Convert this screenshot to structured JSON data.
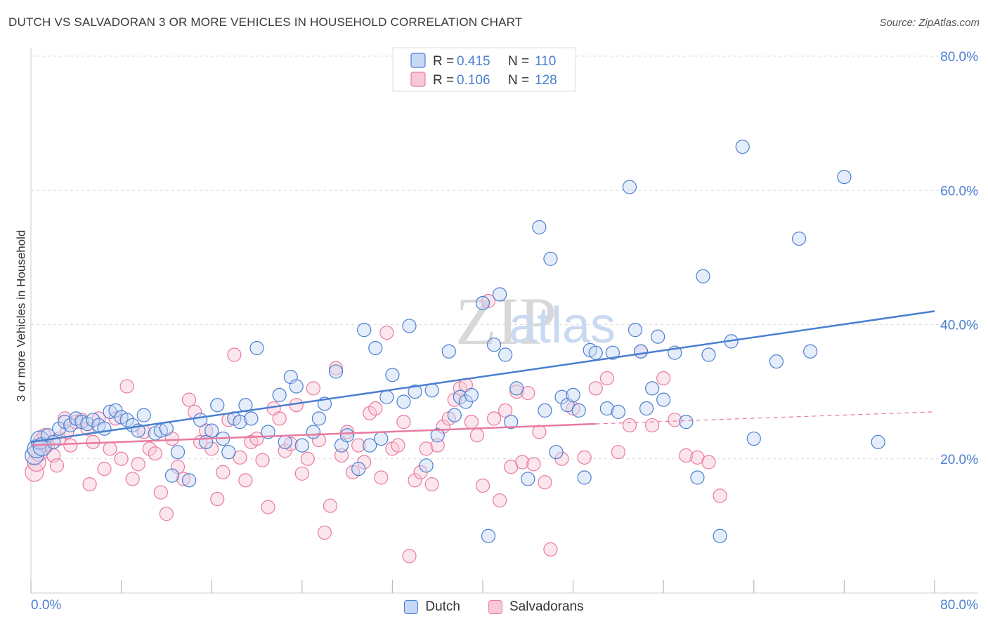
{
  "title": "DUTCH VS SALVADORAN 3 OR MORE VEHICLES IN HOUSEHOLD CORRELATION CHART",
  "source": "Source: ZipAtlas.com",
  "watermark": {
    "zip": "ZIP",
    "atlas": "atlas"
  },
  "legend_top": [
    {
      "r_label": "R = ",
      "r_value": "0.415",
      "n_label": "N = ",
      "n_value": "110"
    },
    {
      "r_label": "R = ",
      "r_value": "0.106",
      "n_label": "N = ",
      "n_value": "128"
    }
  ],
  "legend_bottom": [
    "Dutch",
    "Salvadorans"
  ],
  "chart_data": {
    "type": "scatter",
    "title": "DUTCH VS SALVADORAN 3 OR MORE VEHICLES IN HOUSEHOLD CORRELATION CHART",
    "xlabel": "",
    "ylabel": "3 or more Vehicles in Household",
    "xlim": [
      0,
      80
    ],
    "ylim": [
      0,
      80
    ],
    "x_tick_labels": [
      "0.0%",
      "80.0%"
    ],
    "y_ticks": [
      20,
      40,
      60,
      80
    ],
    "y_tick_labels": [
      "20.0%",
      "40.0%",
      "60.0%",
      "80.0%"
    ],
    "grid": true,
    "legend_position": "top-center",
    "colors": {
      "dutch": "#4a7fd0",
      "salvadorans": "#e87aa0",
      "dutch_fill": "#c5d8f5",
      "salvadorans_fill": "#f8c8d8"
    },
    "series": [
      {
        "name": "Dutch",
        "r": 0.415,
        "n": 110,
        "trend": {
          "x": [
            0,
            80
          ],
          "y": [
            22.5,
            42.0
          ]
        },
        "points": [
          [
            0.3,
            20.5
          ],
          [
            0.5,
            21.5
          ],
          [
            0.8,
            22.8
          ],
          [
            1,
            21.8
          ],
          [
            1.5,
            23.5
          ],
          [
            2,
            22.5
          ],
          [
            2.5,
            24.5
          ],
          [
            3,
            25.5
          ],
          [
            3.5,
            25
          ],
          [
            4,
            26
          ],
          [
            4.5,
            25.5
          ],
          [
            5,
            25.2
          ],
          [
            5.5,
            25.8
          ],
          [
            6,
            25
          ],
          [
            6.5,
            24.5
          ],
          [
            7,
            27
          ],
          [
            7.5,
            27.2
          ],
          [
            8,
            26.2
          ],
          [
            8.5,
            25.8
          ],
          [
            9,
            25
          ],
          [
            9.5,
            24.2
          ],
          [
            10,
            26.5
          ],
          [
            11,
            23.8
          ],
          [
            11.5,
            24.2
          ],
          [
            12,
            24.5
          ],
          [
            12.5,
            17.5
          ],
          [
            13,
            21
          ],
          [
            14,
            16.8
          ],
          [
            15,
            25.8
          ],
          [
            15.5,
            22.5
          ],
          [
            16,
            24.2
          ],
          [
            16.5,
            28
          ],
          [
            17,
            23
          ],
          [
            17.5,
            21
          ],
          [
            18,
            26
          ],
          [
            18.5,
            25.5
          ],
          [
            19,
            28
          ],
          [
            19.5,
            26
          ],
          [
            20,
            36.5
          ],
          [
            21,
            24
          ],
          [
            22,
            29.5
          ],
          [
            22.5,
            22.5
          ],
          [
            23,
            32.2
          ],
          [
            23.5,
            30.8
          ],
          [
            24,
            22
          ],
          [
            25,
            24
          ],
          [
            25.5,
            26
          ],
          [
            26,
            28.2
          ],
          [
            27,
            33
          ],
          [
            27.5,
            22
          ],
          [
            28,
            23.5
          ],
          [
            29,
            18.5
          ],
          [
            29.5,
            39.2
          ],
          [
            30,
            22
          ],
          [
            30.5,
            36.5
          ],
          [
            31,
            23
          ],
          [
            31.5,
            29.2
          ],
          [
            32,
            32.5
          ],
          [
            33,
            28.5
          ],
          [
            33.5,
            39.8
          ],
          [
            34,
            30
          ],
          [
            35,
            19
          ],
          [
            35.5,
            30.2
          ],
          [
            36,
            23.5
          ],
          [
            37,
            36
          ],
          [
            37.5,
            26.5
          ],
          [
            38,
            29.2
          ],
          [
            38.5,
            28.5
          ],
          [
            39,
            29.5
          ],
          [
            40,
            43.2
          ],
          [
            40.5,
            8.5
          ],
          [
            41,
            37
          ],
          [
            41.5,
            44.5
          ],
          [
            42,
            35.5
          ],
          [
            42.5,
            25.5
          ],
          [
            43,
            30.5
          ],
          [
            44,
            17
          ],
          [
            45,
            54.5
          ],
          [
            45.5,
            27.2
          ],
          [
            46,
            49.8
          ],
          [
            46.5,
            21
          ],
          [
            47,
            29.2
          ],
          [
            47.5,
            28
          ],
          [
            48,
            29.5
          ],
          [
            48.5,
            27.2
          ],
          [
            49,
            17.2
          ],
          [
            49.5,
            36.2
          ],
          [
            50,
            35.8
          ],
          [
            51,
            27.5
          ],
          [
            51.5,
            35.8
          ],
          [
            52,
            27
          ],
          [
            53,
            60.5
          ],
          [
            53.5,
            39.2
          ],
          [
            54,
            36
          ],
          [
            54.5,
            27.5
          ],
          [
            55,
            30.5
          ],
          [
            55.5,
            38.2
          ],
          [
            56,
            28.8
          ],
          [
            57,
            35.8
          ],
          [
            58,
            25.5
          ],
          [
            59,
            17.2
          ],
          [
            59.5,
            47.2
          ],
          [
            60,
            35.5
          ],
          [
            61,
            8.5
          ],
          [
            62,
            37.5
          ],
          [
            63,
            66.5
          ],
          [
            64,
            23
          ],
          [
            66,
            34.5
          ],
          [
            68,
            52.8
          ],
          [
            69,
            36
          ],
          [
            72,
            62
          ],
          [
            75,
            22.5
          ]
        ]
      },
      {
        "name": "Salvadorans",
        "r": 0.106,
        "n": 128,
        "trend": {
          "x": [
            0,
            50
          ],
          "y": [
            22.0,
            25.2
          ]
        },
        "trend_extension": {
          "x": [
            50,
            80
          ],
          "y": [
            25.2,
            27.0
          ]
        },
        "points": [
          [
            0.3,
            18
          ],
          [
            0.5,
            19.5
          ],
          [
            0.7,
            21
          ],
          [
            1,
            22.5
          ],
          [
            1.2,
            23.5
          ],
          [
            1.5,
            22
          ],
          [
            2,
            20.5
          ],
          [
            2.3,
            19
          ],
          [
            2.5,
            23
          ],
          [
            3,
            26
          ],
          [
            3.2,
            24
          ],
          [
            3.5,
            22
          ],
          [
            4,
            25.5
          ],
          [
            4.5,
            25.8
          ],
          [
            5,
            24.5
          ],
          [
            5.2,
            16.2
          ],
          [
            5.5,
            22.5
          ],
          [
            6,
            26
          ],
          [
            6.5,
            18.5
          ],
          [
            7,
            21.5
          ],
          [
            7.5,
            26
          ],
          [
            8,
            20
          ],
          [
            8.5,
            30.8
          ],
          [
            9,
            17
          ],
          [
            9.5,
            19.2
          ],
          [
            10,
            24
          ],
          [
            10.5,
            21.5
          ],
          [
            11,
            20.8
          ],
          [
            11.5,
            15
          ],
          [
            12,
            11.8
          ],
          [
            12.5,
            23
          ],
          [
            13,
            18.8
          ],
          [
            13.5,
            17
          ],
          [
            14,
            28.8
          ],
          [
            14.5,
            27
          ],
          [
            15,
            22.5
          ],
          [
            15.5,
            24.2
          ],
          [
            16,
            21.5
          ],
          [
            16.5,
            14
          ],
          [
            17,
            18
          ],
          [
            17.5,
            25.8
          ],
          [
            18,
            35.5
          ],
          [
            18.5,
            20.2
          ],
          [
            19,
            16.8
          ],
          [
            19.5,
            22.5
          ],
          [
            20,
            23
          ],
          [
            20.5,
            19.8
          ],
          [
            21,
            12.8
          ],
          [
            21.5,
            27.5
          ],
          [
            22,
            26
          ],
          [
            22.5,
            21.2
          ],
          [
            23,
            22.2
          ],
          [
            23.5,
            28
          ],
          [
            24,
            17.8
          ],
          [
            24.5,
            20
          ],
          [
            25,
            30.5
          ],
          [
            25.5,
            22.8
          ],
          [
            26,
            9
          ],
          [
            26.5,
            13
          ],
          [
            27,
            33.5
          ],
          [
            27.5,
            20.5
          ],
          [
            28,
            24
          ],
          [
            28.5,
            18
          ],
          [
            29,
            22
          ],
          [
            29.5,
            19.5
          ],
          [
            30,
            26.8
          ],
          [
            30.5,
            27.5
          ],
          [
            31,
            17.2
          ],
          [
            31.5,
            38.8
          ],
          [
            32,
            21.5
          ],
          [
            32.5,
            22
          ],
          [
            33,
            25.5
          ],
          [
            33.5,
            5.5
          ],
          [
            34,
            16.8
          ],
          [
            34.5,
            18
          ],
          [
            35,
            21.5
          ],
          [
            35.5,
            16.2
          ],
          [
            36,
            22
          ],
          [
            36.5,
            24.8
          ],
          [
            37,
            26
          ],
          [
            37.5,
            28.8
          ],
          [
            38,
            30.5
          ],
          [
            38.5,
            31
          ],
          [
            39,
            25.5
          ],
          [
            39.5,
            23.5
          ],
          [
            40,
            16
          ],
          [
            40.5,
            43.5
          ],
          [
            41,
            26
          ],
          [
            41.5,
            13.8
          ],
          [
            42,
            27.2
          ],
          [
            42.5,
            18.8
          ],
          [
            43,
            30
          ],
          [
            43.5,
            19.5
          ],
          [
            44,
            29.8
          ],
          [
            44.5,
            19.2
          ],
          [
            45,
            24
          ],
          [
            45.5,
            16.5
          ],
          [
            46,
            6.5
          ],
          [
            47,
            20
          ],
          [
            48,
            27.5
          ],
          [
            49,
            20.2
          ],
          [
            50,
            30.5
          ],
          [
            51,
            32
          ],
          [
            52,
            21
          ],
          [
            53,
            25
          ],
          [
            54,
            36
          ],
          [
            55,
            25
          ],
          [
            56,
            32
          ],
          [
            57,
            25.8
          ],
          [
            58,
            20.5
          ],
          [
            59,
            20.2
          ],
          [
            60,
            19.5
          ],
          [
            61,
            14.5
          ]
        ]
      }
    ]
  }
}
